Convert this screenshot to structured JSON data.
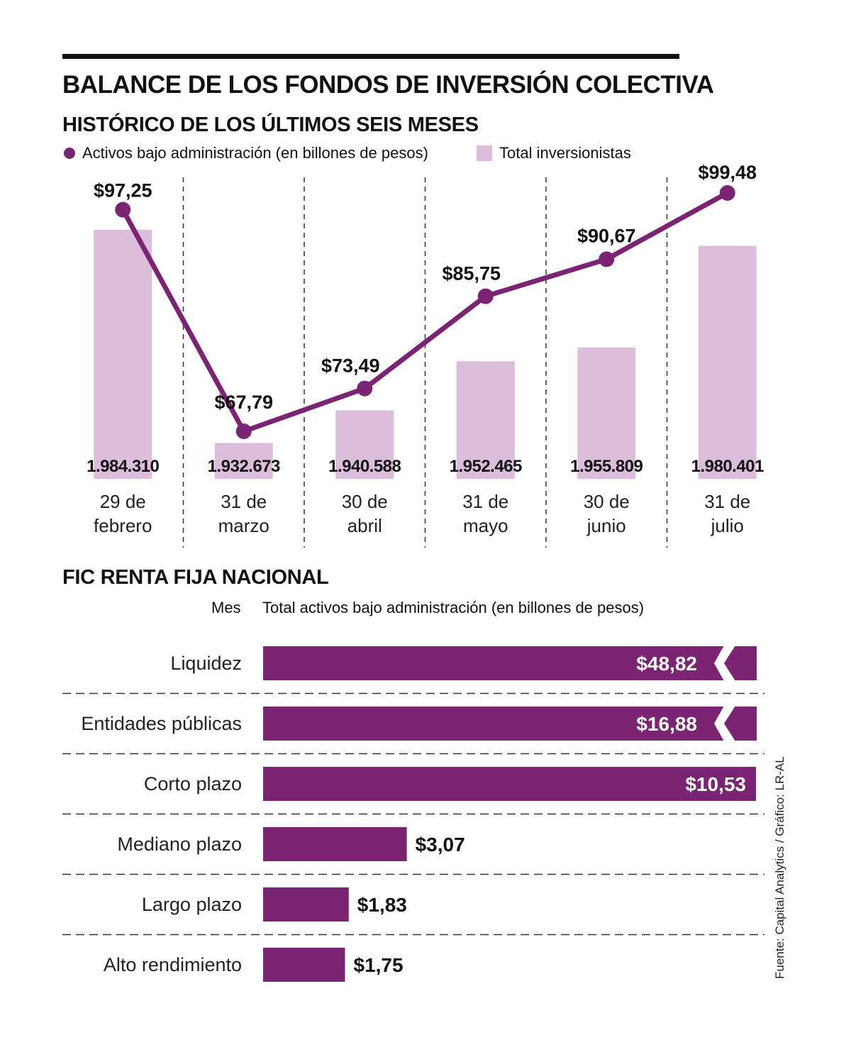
{
  "header": {
    "title": "BALANCE DE LOS FONDOS DE INVERSIÓN COLECTIVA",
    "subtitle": "HISTÓRICO DE LOS ÚLTIMOS SEIS MESES",
    "section2_title": "FIC RENTA FIJA NACIONAL",
    "col_mes": "Mes",
    "col_total": "Total activos bajo administración (en billones de pesos)"
  },
  "legend": {
    "line_label": "Activos bajo administración (en billones de pesos)",
    "bar_label": "Total inversionistas"
  },
  "source": "Fuente: Capital Analytics / Gráfico: LR-AL",
  "colors": {
    "purple": "#7b2473",
    "lilac": "#dcbedc",
    "text": "#111111"
  },
  "chart_data": [
    {
      "type": "bar+line",
      "title": "HISTÓRICO DE LOS ÚLTIMOS SEIS MESES",
      "categories": [
        [
          "29 de",
          "febrero"
        ],
        [
          "31 de",
          "marzo"
        ],
        [
          "30 de",
          "abril"
        ],
        [
          "31 de",
          "mayo"
        ],
        [
          "30 de",
          "junio"
        ],
        [
          "31 de",
          "julio"
        ]
      ],
      "series": [
        {
          "name": "Total inversionistas",
          "type": "bar",
          "values": [
            1984310,
            1932673,
            1940588,
            1952465,
            1955809,
            1980401
          ],
          "labels": [
            "1.984.310",
            "1.932.673",
            "1.940.588",
            "1.952.465",
            "1.955.809",
            "1.980.401"
          ]
        },
        {
          "name": "Activos bajo administración (en billones de pesos)",
          "type": "line",
          "values": [
            97.25,
            67.79,
            73.49,
            85.75,
            90.67,
            99.48
          ],
          "labels": [
            "$97,25",
            "$67,79",
            "$73,49",
            "$85,75",
            "$90,67",
            "$99,48"
          ]
        }
      ]
    },
    {
      "type": "bar",
      "orientation": "horizontal",
      "title": "FIC RENTA FIJA NACIONAL",
      "categories": [
        "Liquidez",
        "Entidades públicas",
        "Corto plazo",
        "Mediano plazo",
        "Largo plazo",
        "Alto rendimiento"
      ],
      "values": [
        48.82,
        16.88,
        10.53,
        3.07,
        1.83,
        1.75
      ],
      "labels": [
        "$48,82",
        "$16,88",
        "$10,53",
        "$3,07",
        "$1,83",
        "$1,75"
      ],
      "broken_axis": [
        true,
        true,
        false,
        false,
        false,
        false
      ]
    }
  ]
}
